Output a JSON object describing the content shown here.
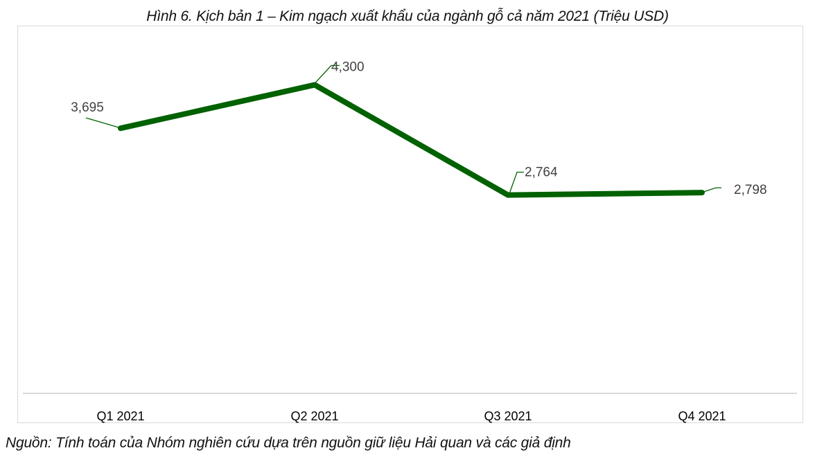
{
  "title": "Hình 6. Kịch bản 1 – Kim ngạch xuất khẩu của ngành gỗ cả năm 2021 (Triệu USD)",
  "source": "Nguồn: Tính toán của Nhóm nghiên cứu dựa trên nguồn giữ liệu Hải quan và các giả định",
  "colors": {
    "line": "#006100",
    "axis": "#d9d9d9",
    "label": "#404040"
  },
  "chart_data": {
    "type": "line",
    "title": "Hình 6. Kịch bản 1 – Kim ngạch xuất khẩu của ngành gỗ cả năm 2021 (Triệu USD)",
    "categories": [
      "Q1 2021",
      "Q2  2021",
      "Q3 2021",
      "Q4 2021"
    ],
    "series": [
      {
        "name": "Kim ngạch xuất khẩu",
        "values": [
          3695,
          4300,
          2764,
          2798
        ]
      }
    ],
    "data_labels": [
      "3,695",
      "4,300",
      "2,764",
      "2,798"
    ],
    "xlabel": "",
    "ylabel": "",
    "ylim": [
      0,
      5000
    ],
    "grid": false,
    "legend": "none"
  }
}
